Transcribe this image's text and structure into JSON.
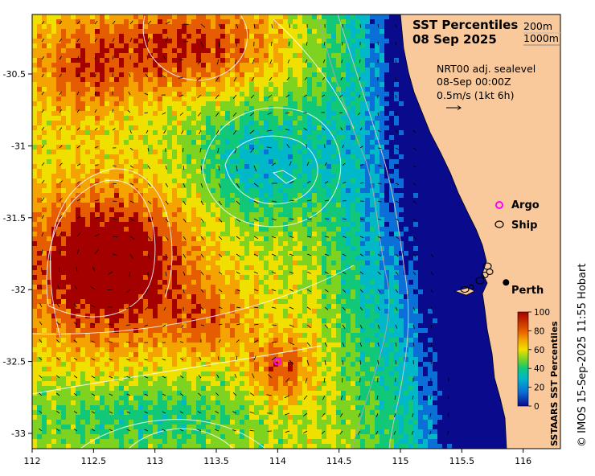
{
  "title": {
    "line1": "SST Percentiles",
    "line2": "08 Sep 2025"
  },
  "isobaths": [
    "200m",
    "1000m"
  ],
  "info": {
    "line1": "NRT00 adj. sealevel",
    "line2": "08-Sep 00:00Z",
    "line3": "0.5m/s (1kt 6h)"
  },
  "legend": {
    "argo": "Argo",
    "ship": "Ship",
    "city": "Perth"
  },
  "colorbar": {
    "title": "SSTAARS SST Percentiles",
    "ticks": [
      "100",
      "80",
      "60",
      "40",
      "20",
      "0"
    ]
  },
  "axes": {
    "x_ticks": [
      "112",
      "112.5",
      "113",
      "113.5",
      "114",
      "114.5",
      "115",
      "115.5",
      "116"
    ],
    "y_ticks": [
      "-30.5",
      "-31",
      "-31.5",
      "-32",
      "-32.5",
      "-33"
    ]
  },
  "credit": "© IMOS 15-Sep-2025 11:55 Hobart",
  "colors": {
    "land": "#f9c99b",
    "p100": "#a40000",
    "p80": "#e65c00",
    "p70": "#f5a300",
    "p60": "#f0e000",
    "p50": "#7ed321",
    "p40": "#10c878",
    "p30": "#00b8c8",
    "p20": "#0a6fd6",
    "p0": "#0a0a8c",
    "argo": "#ff00ff"
  },
  "argo_float": {
    "lon": 114.0,
    "lat": -32.5
  },
  "city_location": {
    "lon": 115.86,
    "lat": -31.95
  },
  "map_extent": {
    "lon": [
      112.0,
      116.3
    ],
    "lat": [
      -33.1,
      -30.2
    ]
  }
}
